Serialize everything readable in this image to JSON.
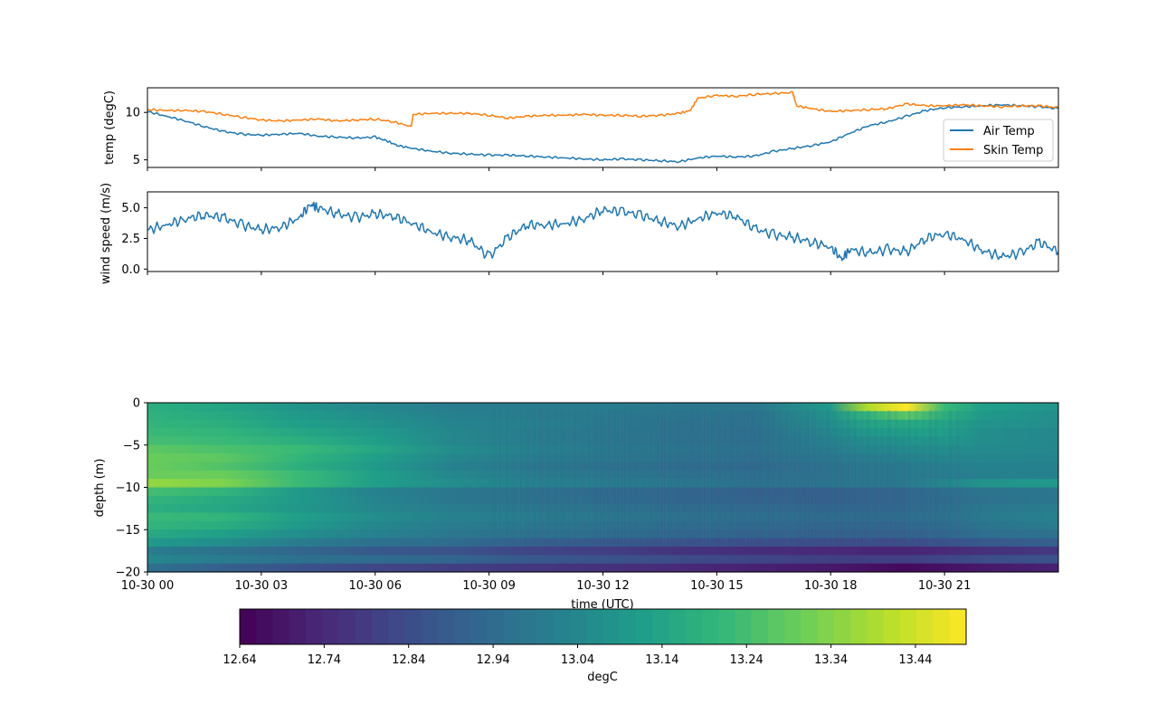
{
  "chart_data": [
    {
      "type": "line",
      "ylabel": "temp (degC)",
      "ylim": [
        4.2,
        12.6
      ],
      "yticks": [
        5,
        10
      ],
      "xlim_hours": [
        0,
        24
      ],
      "legend_placement": "lower-right",
      "series": [
        {
          "name": "Air Temp",
          "color": "#1f77b4",
          "x": [
            0,
            0.5,
            1,
            1.5,
            2,
            2.5,
            3,
            3.5,
            4,
            4.5,
            5,
            5.5,
            6,
            6.3,
            6.6,
            7,
            7.5,
            8,
            8.5,
            9,
            9.5,
            10,
            10.5,
            11,
            11.5,
            12,
            12.5,
            13,
            13.5,
            14,
            14.5,
            15,
            15.5,
            16,
            16.5,
            17,
            17.5,
            18,
            18.5,
            19,
            19.5,
            20,
            20.5,
            21,
            21.5,
            22,
            22.5,
            23,
            23.5,
            24
          ],
          "y": [
            10.1,
            9.6,
            9.1,
            8.5,
            8.0,
            7.7,
            7.6,
            7.7,
            7.8,
            7.5,
            7.4,
            7.3,
            7.4,
            7.0,
            6.5,
            6.2,
            5.9,
            5.7,
            5.6,
            5.5,
            5.5,
            5.4,
            5.3,
            5.2,
            5.1,
            5.0,
            5.1,
            5.0,
            4.9,
            4.8,
            5.2,
            5.4,
            5.3,
            5.4,
            5.9,
            6.2,
            6.5,
            6.9,
            7.8,
            8.6,
            9.0,
            9.6,
            10.2,
            10.5,
            10.6,
            10.7,
            10.8,
            10.7,
            10.6,
            10.4
          ]
        },
        {
          "name": "Skin Temp",
          "color": "#ff7f0e",
          "x": [
            0,
            0.5,
            1,
            1.5,
            2,
            2.5,
            3,
            3.5,
            4,
            4.5,
            5,
            5.5,
            6,
            6.5,
            6.95,
            7.0,
            7.5,
            8,
            8.5,
            9,
            9.5,
            10,
            10.5,
            11,
            11.5,
            12,
            12.5,
            13,
            13.5,
            14,
            14.3,
            14.5,
            15,
            15.5,
            16,
            16.5,
            17,
            17.1,
            17.5,
            18,
            18.5,
            19,
            19.5,
            20,
            20.5,
            21,
            21.5,
            22,
            22.5,
            23,
            23.5,
            24
          ],
          "y": [
            10.3,
            10.2,
            10.2,
            10.1,
            9.8,
            9.5,
            9.2,
            9.1,
            9.2,
            9.3,
            9.1,
            9.2,
            9.3,
            9.0,
            8.5,
            9.8,
            9.9,
            9.9,
            9.9,
            9.7,
            9.4,
            9.6,
            9.7,
            9.7,
            9.8,
            9.7,
            9.7,
            9.6,
            9.7,
            9.9,
            10.2,
            11.5,
            11.8,
            11.7,
            11.9,
            12.0,
            12.1,
            10.7,
            10.4,
            10.1,
            10.2,
            10.3,
            10.4,
            10.9,
            10.7,
            10.7,
            10.8,
            10.7,
            10.6,
            10.7,
            10.7,
            10.5
          ]
        }
      ]
    },
    {
      "type": "line",
      "ylabel": "wind speed (m/s)",
      "ylim": [
        -0.2,
        6.3
      ],
      "yticks": [
        "0.0",
        "2.5",
        "5.0"
      ],
      "xlim_hours": [
        0,
        24
      ],
      "series": [
        {
          "color": "#1f77b4",
          "x": [
            0,
            0.5,
            1,
            1.5,
            2,
            2.5,
            3,
            3.5,
            4,
            4.3,
            4.5,
            5,
            5.5,
            6,
            6.5,
            7,
            7.5,
            8,
            8.5,
            9,
            9.5,
            10,
            10.5,
            11,
            11.5,
            12,
            12.5,
            13,
            13.5,
            14,
            14.5,
            15,
            15.5,
            16,
            16.5,
            17,
            17.5,
            18,
            18.3,
            18.5,
            19,
            19.5,
            20,
            20.5,
            21,
            21.5,
            22,
            22.5,
            23,
            23.5,
            24
          ],
          "y": [
            3.2,
            3.6,
            4.1,
            4.4,
            4.2,
            3.6,
            3.2,
            3.4,
            4.2,
            5.3,
            5.0,
            4.5,
            4.2,
            4.5,
            4.3,
            3.7,
            3.0,
            2.6,
            2.3,
            1.0,
            2.6,
            3.6,
            3.6,
            3.7,
            4.1,
            4.8,
            4.7,
            4.4,
            3.9,
            3.5,
            4.1,
            4.6,
            4.3,
            3.3,
            2.8,
            2.6,
            2.2,
            1.8,
            0.8,
            1.6,
            1.3,
            1.6,
            1.4,
            2.5,
            2.9,
            2.4,
            1.5,
            1.0,
            1.3,
            2.2,
            1.4
          ]
        }
      ]
    },
    {
      "type": "heatmap",
      "xlabel": "time (UTC)",
      "ylabel": "depth (m)",
      "ylim": [
        -20,
        0
      ],
      "yticks": [
        "0",
        "−5",
        "−10",
        "−15",
        "−20"
      ],
      "xlim_hours": [
        0,
        24
      ],
      "xticks": [
        "10-30 00",
        "10-30 03",
        "10-30 06",
        "10-30 09",
        "10-30 12",
        "10-30 15",
        "10-30 18",
        "10-30 21"
      ],
      "colormap": "viridis",
      "colorbar_label": "degC",
      "colorbar_range": [
        12.64,
        13.5
      ],
      "colorbar_ticks": [
        "12.64",
        "12.74",
        "12.84",
        "12.94",
        "13.04",
        "13.14",
        "13.24",
        "13.34",
        "13.44"
      ],
      "depth_profiles": [
        {
          "x": 0,
          "values": [
            13.18,
            13.19,
            13.2,
            13.22,
            13.24,
            13.28,
            13.3,
            13.3,
            13.3,
            13.36,
            13.24,
            13.2,
            13.18,
            13.22,
            13.2,
            13.16,
            13.1,
            13.0,
            13.04,
            12.96
          ]
        },
        {
          "x": 2,
          "values": [
            13.14,
            13.16,
            13.18,
            13.2,
            13.22,
            13.25,
            13.28,
            13.26,
            13.3,
            13.33,
            13.2,
            13.16,
            13.15,
            13.2,
            13.17,
            13.12,
            13.06,
            12.96,
            13.0,
            12.9
          ]
        },
        {
          "x": 4,
          "values": [
            13.08,
            13.1,
            13.12,
            13.15,
            13.18,
            13.22,
            13.2,
            13.18,
            13.22,
            13.22,
            13.1,
            13.1,
            13.09,
            13.12,
            13.1,
            13.06,
            13.0,
            12.92,
            12.96,
            12.86
          ]
        },
        {
          "x": 6,
          "values": [
            13.04,
            13.06,
            13.08,
            13.1,
            13.12,
            13.15,
            13.12,
            13.1,
            13.12,
            13.12,
            13.02,
            13.03,
            13.04,
            13.06,
            13.04,
            13.02,
            12.96,
            12.88,
            12.94,
            12.82
          ]
        },
        {
          "x": 8,
          "values": [
            13.0,
            13.02,
            13.03,
            13.04,
            13.04,
            13.06,
            13.04,
            13.02,
            13.04,
            13.06,
            12.98,
            12.98,
            13.0,
            13.02,
            13.0,
            12.98,
            12.94,
            12.86,
            12.92,
            12.8
          ]
        },
        {
          "x": 10,
          "values": [
            13.0,
            13.0,
            13.01,
            13.0,
            13.0,
            13.02,
            13.0,
            12.98,
            13.0,
            13.02,
            12.96,
            12.96,
            12.98,
            13.0,
            12.98,
            12.96,
            12.9,
            12.82,
            12.88,
            12.78
          ]
        },
        {
          "x": 12,
          "values": [
            13.0,
            12.99,
            12.99,
            12.98,
            12.98,
            12.99,
            12.98,
            12.96,
            12.98,
            13.0,
            12.93,
            12.94,
            12.96,
            12.98,
            12.96,
            12.94,
            12.88,
            12.8,
            12.86,
            12.76
          ]
        },
        {
          "x": 14,
          "values": [
            12.98,
            12.97,
            12.96,
            12.96,
            12.96,
            12.97,
            12.96,
            12.94,
            12.96,
            12.98,
            12.92,
            12.92,
            12.94,
            12.96,
            12.94,
            12.92,
            12.86,
            12.77,
            12.84,
            12.74
          ]
        },
        {
          "x": 16,
          "values": [
            12.98,
            12.96,
            12.96,
            12.95,
            12.95,
            12.96,
            12.95,
            12.93,
            12.95,
            12.96,
            12.9,
            12.91,
            12.93,
            12.95,
            12.93,
            12.91,
            12.85,
            12.75,
            12.82,
            12.72
          ]
        },
        {
          "x": 18,
          "values": [
            13.1,
            13.08,
            13.06,
            13.04,
            13.02,
            13.0,
            12.98,
            12.96,
            12.96,
            12.97,
            12.9,
            12.9,
            12.92,
            12.94,
            12.92,
            12.9,
            12.84,
            12.74,
            12.8,
            12.7
          ]
        },
        {
          "x": 19,
          "values": [
            13.4,
            13.2,
            13.14,
            13.1,
            13.06,
            13.04,
            13.0,
            12.98,
            12.98,
            12.98,
            12.91,
            12.91,
            12.92,
            12.94,
            12.92,
            12.9,
            12.84,
            12.73,
            12.8,
            12.68
          ]
        },
        {
          "x": 20,
          "values": [
            13.5,
            13.28,
            13.16,
            13.12,
            13.08,
            13.05,
            13.02,
            12.99,
            12.99,
            12.99,
            12.92,
            12.92,
            12.93,
            12.94,
            12.92,
            12.9,
            12.84,
            12.73,
            12.8,
            12.66
          ]
        },
        {
          "x": 21,
          "values": [
            13.22,
            13.18,
            13.14,
            13.12,
            13.09,
            13.06,
            13.04,
            13.01,
            13.0,
            13.04,
            12.95,
            12.94,
            12.95,
            12.96,
            12.94,
            12.92,
            12.86,
            12.74,
            12.82,
            12.68
          ]
        },
        {
          "x": 22,
          "values": [
            13.12,
            13.1,
            13.08,
            13.06,
            13.06,
            13.05,
            13.04,
            13.02,
            13.01,
            13.08,
            12.97,
            12.96,
            12.98,
            12.99,
            12.97,
            12.95,
            12.88,
            12.76,
            12.84,
            12.7
          ]
        },
        {
          "x": 24,
          "values": [
            13.08,
            13.06,
            13.06,
            13.04,
            13.04,
            13.04,
            13.03,
            13.02,
            13.02,
            13.1,
            12.98,
            12.98,
            13.0,
            13.02,
            13.0,
            12.96,
            12.9,
            12.78,
            12.86,
            12.72
          ]
        }
      ]
    }
  ]
}
